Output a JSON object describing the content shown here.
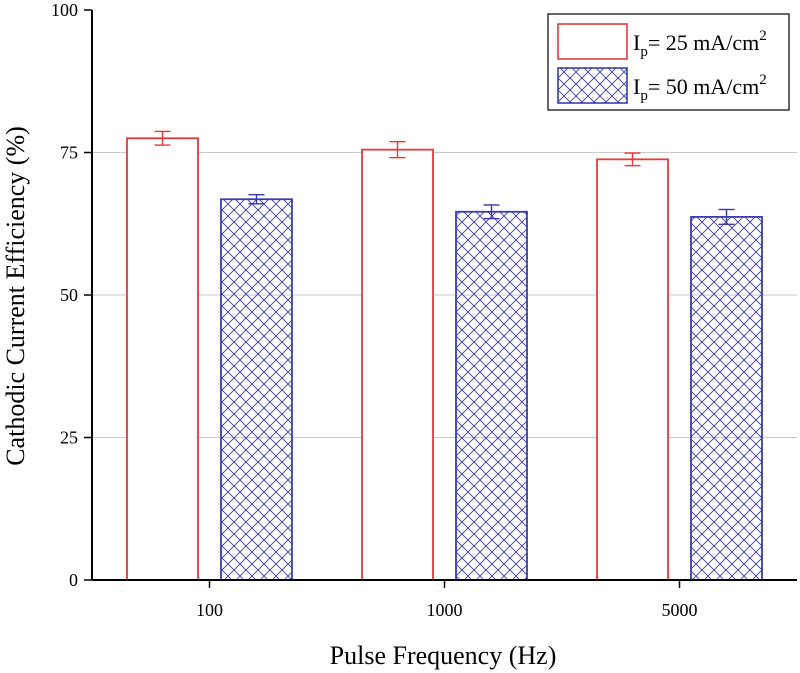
{
  "chart_data": {
    "type": "bar",
    "xlabel": "Pulse Frequency (Hz)",
    "ylabel": "Cathodic Current Efficiency (%)",
    "ylim": [
      0,
      100
    ],
    "yticks": [
      0,
      25,
      50,
      75,
      100
    ],
    "categories": [
      "100",
      "1000",
      "5000"
    ],
    "grid": "horizontal",
    "legend_position": "top-right",
    "series": [
      {
        "legend": {
          "main": "I",
          "sub": "p",
          "rest": "= 25 mA/cm",
          "sup": "2"
        },
        "values": [
          77.5,
          75.5,
          73.8
        ],
        "errors": [
          1.2,
          1.4,
          1.1
        ],
        "color": "#e8393a",
        "fill": "none"
      },
      {
        "legend": {
          "main": "I",
          "sub": "p",
          "rest": "= 50 mA/cm",
          "sup": "2"
        },
        "values": [
          66.8,
          64.6,
          63.7
        ],
        "errors": [
          0.8,
          1.2,
          1.3
        ],
        "color": "#3b3bb0",
        "fill": "crosshatch"
      }
    ]
  }
}
